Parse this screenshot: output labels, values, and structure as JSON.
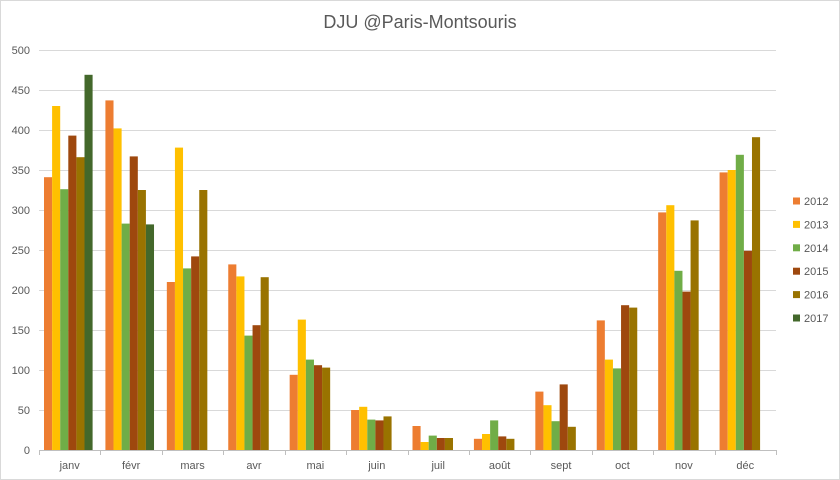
{
  "chart_data": {
    "type": "bar",
    "title": "DJU @Paris-Montsouris",
    "xlabel": "",
    "ylabel": "",
    "ylim": [
      0,
      500
    ],
    "yticks": [
      0,
      50,
      100,
      150,
      200,
      250,
      300,
      350,
      400,
      450,
      500
    ],
    "grid": true,
    "legend_position": "right",
    "categories": [
      "janv",
      "févr",
      "mars",
      "avr",
      "mai",
      "juin",
      "juil",
      "août",
      "sept",
      "oct",
      "nov",
      "déc"
    ],
    "series": [
      {
        "name": "2012",
        "color": "#ED7D31",
        "values": [
          341,
          437,
          210,
          232,
          94,
          50,
          30,
          14,
          73,
          162,
          297,
          347
        ]
      },
      {
        "name": "2013",
        "color": "#FFC000",
        "values": [
          430,
          402,
          378,
          217,
          163,
          54,
          10,
          20,
          56,
          113,
          306,
          350
        ]
      },
      {
        "name": "2014",
        "color": "#70AD47",
        "values": [
          326,
          283,
          227,
          143,
          113,
          38,
          18,
          37,
          36,
          102,
          224,
          369
        ]
      },
      {
        "name": "2015",
        "color": "#9E480E",
        "values": [
          393,
          367,
          242,
          156,
          106,
          37,
          15,
          17,
          82,
          181,
          198,
          249
        ]
      },
      {
        "name": "2016",
        "color": "#997300",
        "values": [
          366,
          325,
          325,
          216,
          103,
          42,
          15,
          14,
          29,
          178,
          287,
          391
        ]
      },
      {
        "name": "2017",
        "color": "#43682B",
        "values": [
          469,
          282,
          null,
          null,
          null,
          null,
          null,
          null,
          null,
          null,
          null,
          null
        ]
      }
    ]
  }
}
